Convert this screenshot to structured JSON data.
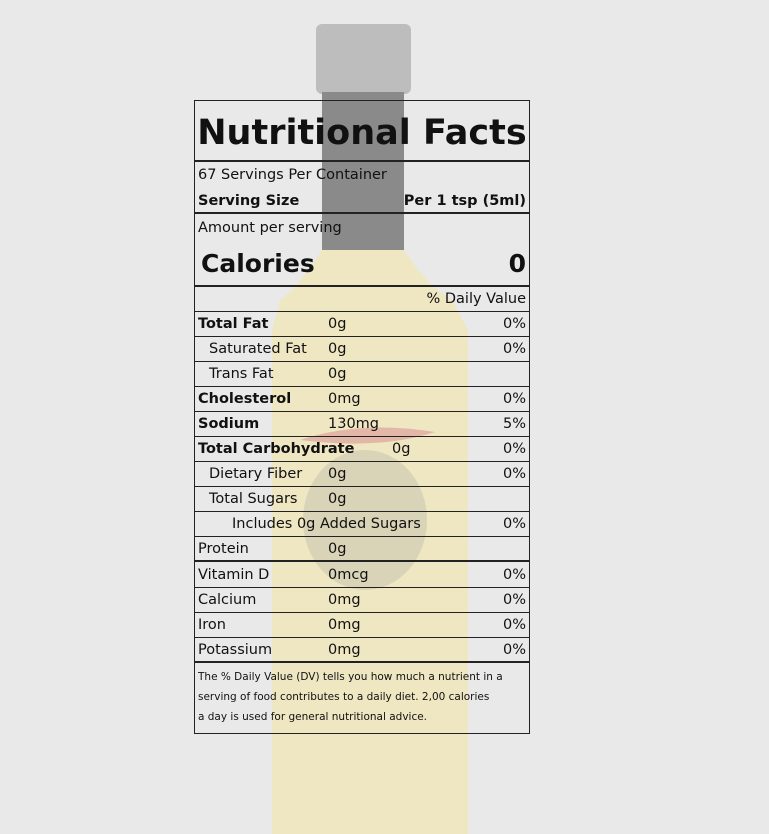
{
  "header": {
    "title": "Nutritional Facts"
  },
  "servings": "67 Servings Per Container",
  "serving_size": {
    "label": "Serving Size",
    "value": "Per 1 tsp (5ml)"
  },
  "amount_per_serving": "Amount per serving",
  "calories": {
    "label": "Calories",
    "value": "0"
  },
  "daily_value_header": "% Daily Value",
  "nutrients": [
    {
      "name": "Total Fat",
      "amount": "0g",
      "dv": "0%"
    },
    {
      "name": "Saturated Fat",
      "amount": "0g",
      "dv": "0%"
    },
    {
      "name": "Trans Fat",
      "amount": "0g"
    },
    {
      "name": "Cholesterol",
      "amount": "0mg",
      "dv": "0%"
    },
    {
      "name": "Sodium",
      "amount": "130mg",
      "dv": "5%"
    },
    {
      "name": "Total Carbohydrate",
      "amount": "0g",
      "dv": "0%"
    },
    {
      "name": "Dietary Fiber",
      "amount": "0g",
      "dv": "0%"
    },
    {
      "name": "Total Sugars",
      "amount": "0g"
    },
    {
      "name": "Includes 0g  Added Sugars",
      "dv": "0%"
    },
    {
      "name": "Protein",
      "amount": "0g"
    }
  ],
  "vitamins": [
    {
      "name": "Vitamin D",
      "amount": "0mcg",
      "dv": "0%"
    },
    {
      "name": "Calcium",
      "amount": "0mg",
      "dv": "0%"
    },
    {
      "name": "Iron",
      "amount": "0mg",
      "dv": "0%"
    },
    {
      "name": "Potassium",
      "amount": "0mg",
      "dv": "0%"
    }
  ],
  "footnote": [
    "The % Daily Value (DV) tells you how much a nutrient in a",
    "serving of food contributes to a daily diet.  2,00 calories",
    "a day is used for general nutritional advice."
  ]
}
